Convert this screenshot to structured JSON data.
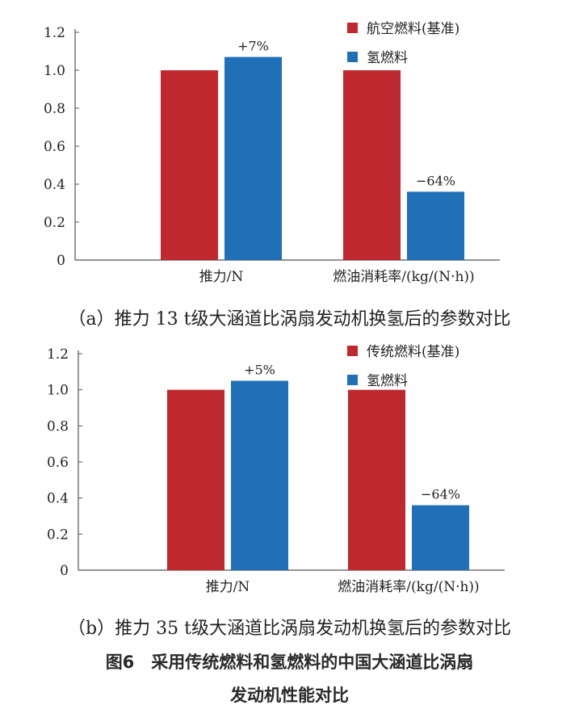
{
  "colors": {
    "base": "#C0282F",
    "hydrogen": "#2070B8",
    "axis": "#555555",
    "text": "#222222"
  },
  "chart_data": [
    {
      "type": "bar",
      "caption": "（a）推力 13 t级大涵道比涡扇发动机换氢后的参数对比",
      "categories": [
        "推力/N",
        "燃油消耗率/(kg/(N·h))"
      ],
      "series": [
        {
          "name": "航空燃料(基准)",
          "values": [
            1.0,
            1.0
          ],
          "color": "#C0282F"
        },
        {
          "name": "氢燃料",
          "values": [
            1.07,
            0.36
          ],
          "color": "#2070B8"
        }
      ],
      "annotations": [
        "+7%",
        "−64%"
      ],
      "ylim": [
        0,
        1.2
      ],
      "yticks": [
        "0",
        "0.2",
        "0.4",
        "0.6",
        "0.8",
        "1.0",
        "1.2"
      ],
      "legend": "top-right",
      "grid": false
    },
    {
      "type": "bar",
      "caption": "（b）推力 35 t级大涵道比涡扇发动机换氢后的参数对比",
      "categories": [
        "推力/N",
        "燃油消耗率/(kg/(N·h))"
      ],
      "series": [
        {
          "name": "传统燃料(基准)",
          "values": [
            1.0,
            1.0
          ],
          "color": "#C0282F"
        },
        {
          "name": "氢燃料",
          "values": [
            1.05,
            0.36
          ],
          "color": "#2070B8"
        }
      ],
      "annotations": [
        "+5%",
        "−64%"
      ],
      "ylim": [
        0,
        1.2
      ],
      "yticks": [
        "0",
        "0.2",
        "0.4",
        "0.6",
        "0.8",
        "1.0",
        "1.2"
      ],
      "legend": "top-right",
      "grid": false
    }
  ],
  "figure_caption": {
    "line1": "图6　采用传统燃料和氢燃料的中国大涵道比涡扇",
    "line2": "发动机性能对比"
  }
}
